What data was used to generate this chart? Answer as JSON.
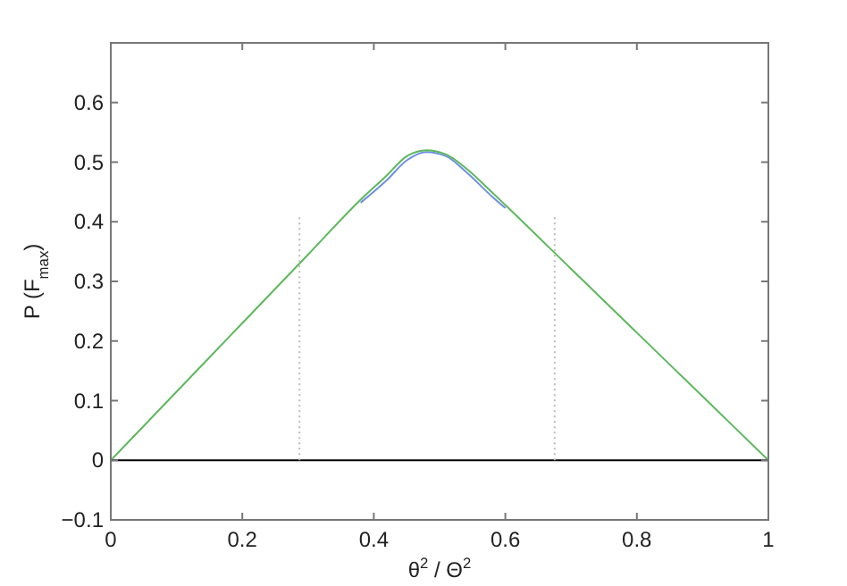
{
  "chart_data": {
    "type": "line",
    "xlabel": "θ$^{2}$ / Θ$^{2}$",
    "ylabel": "P (F$_{max}$)",
    "xlim": [
      0,
      1
    ],
    "ylim": [
      -0.1,
      0.7
    ],
    "xticks": [
      0,
      0.2,
      0.4,
      0.6,
      0.8,
      1
    ],
    "yticks": [
      {
        "value": -0.1,
        "label": "−0.1"
      },
      0,
      0.1,
      0.2,
      0.3,
      0.4,
      0.5,
      0.6
    ],
    "grid": false,
    "series": [
      {
        "color": "#6f8fe0",
        "x": [
          0.38,
          0.42,
          0.45,
          0.48,
          0.51,
          0.54,
          0.58,
          0.6
        ],
        "values": [
          0.432,
          0.47,
          0.503,
          0.517,
          0.51,
          0.484,
          0.442,
          0.423
        ]
      },
      {
        "color": "#5cb85c",
        "x": [
          0,
          0.1,
          0.2,
          0.3,
          0.38,
          0.42,
          0.45,
          0.48,
          0.51,
          0.54,
          0.58,
          0.6,
          0.7,
          0.8,
          0.9,
          1
        ],
        "values": [
          0,
          0.115,
          0.23,
          0.345,
          0.437,
          0.478,
          0.51,
          0.52,
          0.513,
          0.49,
          0.449,
          0.428,
          0.321,
          0.214,
          0.107,
          0
        ]
      },
      {
        "color": "#000000",
        "x": [
          0,
          1
        ],
        "values": [
          0,
          0
        ]
      },
      {
        "color": "#bbbbbb",
        "line_style": "dotted",
        "x": [
          0.287,
          0.287,
          0.5,
          0.675,
          0.675
        ],
        "values": [
          0,
          0.41,
          null,
          0,
          0.41
        ]
      }
    ]
  }
}
